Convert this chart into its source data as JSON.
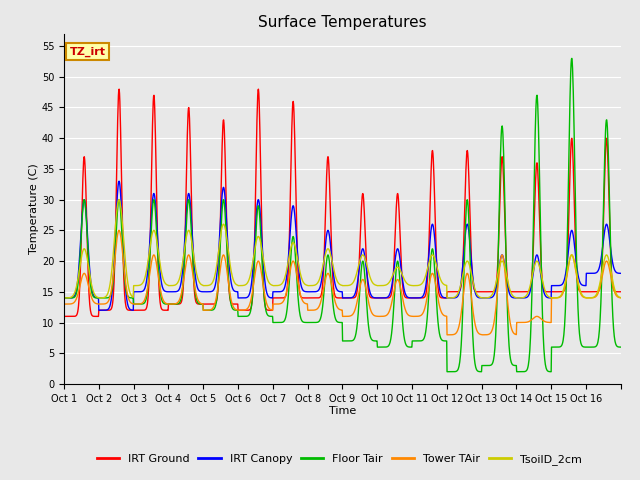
{
  "title": "Surface Temperatures",
  "xlabel": "Time",
  "ylabel": "Temperature (C)",
  "ylim": [
    0,
    57
  ],
  "yticks": [
    0,
    5,
    10,
    15,
    20,
    25,
    30,
    35,
    40,
    45,
    50,
    55
  ],
  "x_labels": [
    "Oct 1",
    "Oct 2",
    "Oct 3",
    "Oct 4",
    "Oct 5",
    "Oct 6",
    "Oct 7",
    "Oct 8",
    "Oct 9",
    "Oct 10",
    "Oct 11",
    "Oct 12",
    "Oct 13",
    "Oct 14",
    "Oct 15",
    "Oct 16"
  ],
  "annotation_text": "TZ_irt",
  "legend": [
    "IRT Ground",
    "IRT Canopy",
    "Floor Tair",
    "Tower TAir",
    "TsoilD_2cm"
  ],
  "line_colors": [
    "#ff0000",
    "#0000ff",
    "#00bb00",
    "#ff8800",
    "#cccc00"
  ],
  "background_color": "#e8e8e8",
  "fig_bg_color": "#e8e8e8",
  "n_days": 16,
  "pts_per_day": 96,
  "title_fontsize": 11,
  "axis_label_fontsize": 8,
  "tick_fontsize": 7,
  "legend_fontsize": 8
}
